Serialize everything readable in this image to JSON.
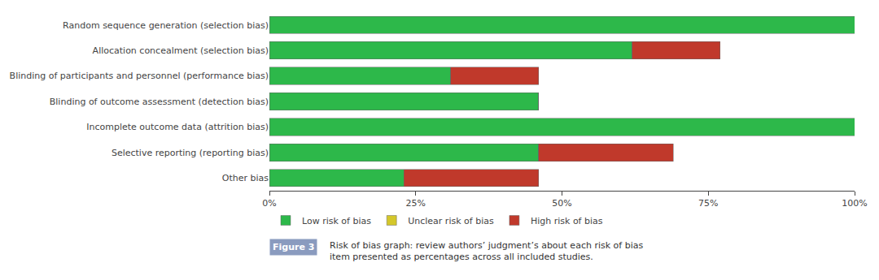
{
  "chart_data": {
    "type": "bar",
    "orientation": "horizontal",
    "stacked": true,
    "categories": [
      "Random sequence generation (selection bias)",
      "Allocation concealment (selection bias)",
      "Blinding of participants and personnel (performance bias)",
      "Blinding of outcome assessment (detection bias)",
      "Incomplete outcome data (attrition bias)",
      "Selective reporting (reporting bias)",
      "Other bias"
    ],
    "series": [
      {
        "name": "Low risk of bias",
        "color": "#2db84a",
        "values": [
          100,
          62,
          31,
          46,
          100,
          46,
          23
        ]
      },
      {
        "name": "Unclear risk of bias",
        "color": "#d4c72a",
        "values": [
          0,
          0,
          0,
          0,
          0,
          0,
          0
        ]
      },
      {
        "name": "High risk of bias",
        "color": "#c0392b",
        "values": [
          0,
          15,
          15,
          0,
          0,
          23,
          23
        ]
      }
    ],
    "xlim": [
      0,
      100
    ],
    "xticks": [
      {
        "value": 0,
        "label": "0%"
      },
      {
        "value": 25,
        "label": "25%"
      },
      {
        "value": 50,
        "label": "50%"
      },
      {
        "value": 75,
        "label": "75%"
      },
      {
        "value": 100,
        "label": "100%"
      }
    ],
    "grid": false,
    "legend": "bottom",
    "annotations": [
      "Figure 3",
      "Risk of bias graph: review authors’ judgment’s about each risk of bias\nitem presented as percentages across all included studies."
    ]
  }
}
